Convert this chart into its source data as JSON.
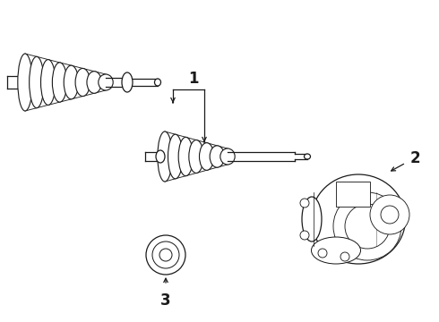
{
  "bg_color": "#ffffff",
  "line_color": "#1a1a1a",
  "lw": 0.9,
  "fig_w": 4.9,
  "fig_h": 3.6,
  "dpi": 100,
  "label_1": "1",
  "label_2": "2",
  "label_3": "3"
}
